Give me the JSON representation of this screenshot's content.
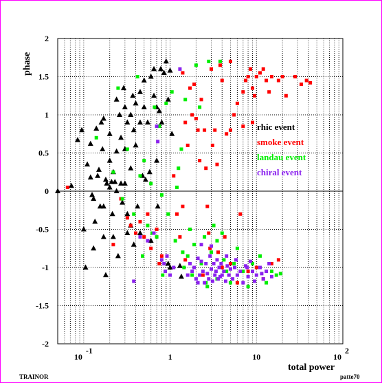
{
  "chart_data": {
    "type": "scatter",
    "xlabel": "total power",
    "ylabel": "phase",
    "xscale": "log",
    "xlim": [
      0.05,
      100
    ],
    "ylim": [
      -2,
      2
    ],
    "grid": true,
    "legend_placement": "right",
    "x_ticks": [
      {
        "value": 0.1,
        "base": "10",
        "exp": "-1"
      },
      {
        "value": 1,
        "label": "1"
      },
      {
        "value": 10,
        "label": "10"
      },
      {
        "value": 100,
        "base": "10",
        "exp": "2"
      }
    ],
    "y_ticks": [
      {
        "value": 2,
        "label": "2"
      },
      {
        "value": 1.5,
        "label": "1.5"
      },
      {
        "value": 1,
        "label": "1"
      },
      {
        "value": 0.5,
        "label": "0.5"
      },
      {
        "value": 0,
        "label": "0"
      },
      {
        "value": -0.5,
        "label": "-0.5"
      },
      {
        "value": -1,
        "label": "-1"
      },
      {
        "value": -1.5,
        "label": "-1.5"
      },
      {
        "value": -2,
        "label": "-2"
      }
    ],
    "footer_left": "TRAINOR",
    "footer_right": "patte70",
    "series": [
      {
        "name": "rhic event",
        "color": "#000000",
        "marker": "triangle",
        "points": [
          [
            0.05,
            0.0
          ],
          [
            0.072,
            0.07
          ],
          [
            0.085,
            0.67
          ],
          [
            0.095,
            0.8
          ],
          [
            0.1,
            -0.5
          ],
          [
            0.105,
            -1.0
          ],
          [
            0.11,
            0.35
          ],
          [
            0.12,
            0.62
          ],
          [
            0.12,
            0.18
          ],
          [
            0.125,
            -0.05
          ],
          [
            0.13,
            -0.1
          ],
          [
            0.13,
            -0.75
          ],
          [
            0.135,
            -0.4
          ],
          [
            0.14,
            0.82
          ],
          [
            0.145,
            0.2
          ],
          [
            0.15,
            0.28
          ],
          [
            0.155,
            -0.2
          ],
          [
            0.16,
            0.9
          ],
          [
            0.165,
            0.55
          ],
          [
            0.17,
            0.95
          ],
          [
            0.17,
            -0.2
          ],
          [
            0.17,
            -0.6
          ],
          [
            0.18,
            0.15
          ],
          [
            0.18,
            -1.1
          ],
          [
            0.185,
            0.1
          ],
          [
            0.2,
            0.75
          ],
          [
            0.2,
            0.4
          ],
          [
            0.2,
            0.05
          ],
          [
            0.21,
            0.12
          ],
          [
            0.215,
            -0.3
          ],
          [
            0.22,
            -0.6
          ],
          [
            0.22,
            0.25
          ],
          [
            0.23,
            0.12
          ],
          [
            0.24,
            1.2
          ],
          [
            0.24,
            0.52
          ],
          [
            0.24,
            0.0
          ],
          [
            0.25,
            -0.85
          ],
          [
            0.26,
            1.0
          ],
          [
            0.27,
            0.7
          ],
          [
            0.27,
            0.1
          ],
          [
            0.28,
            -0.15
          ],
          [
            0.29,
            1.35
          ],
          [
            0.3,
            1.1
          ],
          [
            0.3,
            0.55
          ],
          [
            0.3,
            0.1
          ],
          [
            0.32,
            0.9
          ],
          [
            0.32,
            -0.3
          ],
          [
            0.32,
            -0.55
          ],
          [
            0.35,
            1.0
          ],
          [
            0.35,
            0.3
          ],
          [
            0.35,
            -0.45
          ],
          [
            0.37,
            1.25
          ],
          [
            0.38,
            0.8
          ],
          [
            0.38,
            -0.7
          ],
          [
            0.4,
            1.15
          ],
          [
            0.4,
            0.6
          ],
          [
            0.42,
            -0.2
          ],
          [
            0.45,
            1.3
          ],
          [
            0.45,
            0.9
          ],
          [
            0.45,
            -0.55
          ],
          [
            0.48,
            0.2
          ],
          [
            0.5,
            1.45
          ],
          [
            0.5,
            1.1
          ],
          [
            0.52,
            0.15
          ],
          [
            0.55,
            0.9
          ],
          [
            0.58,
            0.25
          ],
          [
            0.6,
            1.5
          ],
          [
            0.6,
            -0.65
          ],
          [
            0.65,
            1.6
          ],
          [
            0.65,
            1.25
          ],
          [
            0.7,
            1.1
          ],
          [
            0.7,
            0.4
          ],
          [
            0.72,
            -0.2
          ],
          [
            0.75,
            1.05
          ],
          [
            0.78,
            1.6
          ],
          [
            0.8,
            0.9
          ],
          [
            0.85,
            1.55
          ],
          [
            0.9,
            1.7
          ],
          [
            0.95,
            1.2
          ],
          [
            1.0,
            1.58
          ],
          [
            1.05,
            0.75
          ],
          [
            1.0,
            -1.0
          ],
          [
            1.3,
            -0.98
          ],
          [
            1.35,
            -1.12
          ],
          [
            0.95,
            -0.95
          ]
        ]
      },
      {
        "name": "smoke event",
        "color": "#ff0000",
        "marker": "square",
        "points": [
          [
            0.065,
            0.05
          ],
          [
            0.22,
            -0.7
          ],
          [
            0.27,
            -0.1
          ],
          [
            0.32,
            -0.35
          ],
          [
            0.35,
            -0.45
          ],
          [
            0.4,
            -0.55
          ],
          [
            0.45,
            -0.4
          ],
          [
            0.5,
            -0.6
          ],
          [
            0.55,
            -0.3
          ],
          [
            0.6,
            -0.75
          ],
          [
            0.7,
            -0.5
          ],
          [
            0.75,
            -0.95
          ],
          [
            0.8,
            -0.85
          ],
          [
            1.1,
            0.2
          ],
          [
            1.2,
            -0.3
          ],
          [
            1.3,
            -0.6
          ],
          [
            1.4,
            -0.2
          ],
          [
            1.4,
            1.55
          ],
          [
            1.5,
            0.9
          ],
          [
            1.5,
            -0.9
          ],
          [
            1.6,
            0.6
          ],
          [
            1.7,
            1.35
          ],
          [
            1.8,
            1.0
          ],
          [
            1.9,
            1.4
          ],
          [
            2.0,
            0.95
          ],
          [
            2.1,
            0.8
          ],
          [
            2.2,
            0.4
          ],
          [
            2.3,
            1.2
          ],
          [
            2.5,
            0.8
          ],
          [
            2.6,
            0.3
          ],
          [
            2.7,
            -0.2
          ],
          [
            2.8,
            -0.55
          ],
          [
            2.9,
            -0.75
          ],
          [
            3.0,
            1.6
          ],
          [
            3.1,
            0.6
          ],
          [
            3.3,
            0.8
          ],
          [
            3.5,
            0.35
          ],
          [
            3.8,
            1.65
          ],
          [
            4.0,
            1.45
          ],
          [
            4.3,
            -0.6
          ],
          [
            4.5,
            0.75
          ],
          [
            5.0,
            1.7
          ],
          [
            5.5,
            1.0
          ],
          [
            6.0,
            1.15
          ],
          [
            6.5,
            -0.3
          ],
          [
            7.0,
            1.3
          ],
          [
            7.5,
            1.45
          ],
          [
            8.0,
            1.5
          ],
          [
            8.5,
            1.6
          ],
          [
            9.0,
            1.35
          ],
          [
            9.5,
            1.25
          ],
          [
            10.0,
            1.5
          ],
          [
            11.0,
            1.55
          ],
          [
            12.0,
            1.6
          ],
          [
            13.0,
            1.45
          ],
          [
            14.0,
            1.3
          ],
          [
            15.0,
            1.5
          ],
          [
            18.0,
            1.45
          ],
          [
            20.0,
            1.5
          ],
          [
            22.0,
            1.25
          ],
          [
            28.0,
            1.5
          ],
          [
            33.0,
            1.4
          ],
          [
            38.0,
            1.45
          ],
          [
            42.0,
            1.42
          ],
          [
            9.0,
            0.9
          ],
          [
            7.0,
            0.85
          ],
          [
            5.0,
            0.8
          ],
          [
            4.0,
            -1.0
          ],
          [
            5.0,
            -0.95
          ],
          [
            6.0,
            -1.2
          ],
          [
            8.0,
            -1.05
          ],
          [
            10.0,
            -1.0
          ],
          [
            12.0,
            -1.15
          ],
          [
            15.0,
            -0.95
          ],
          [
            18.0,
            -0.9
          ],
          [
            3.6,
            -0.8
          ],
          [
            2.4,
            -1.1
          ]
        ]
      },
      {
        "name": "landau event",
        "color": "#00ee00",
        "marker": "square",
        "points": [
          [
            0.14,
            0.7
          ],
          [
            0.22,
            0.25
          ],
          [
            0.25,
            1.35
          ],
          [
            0.28,
            -0.1
          ],
          [
            0.32,
            0.55
          ],
          [
            0.38,
            -0.3
          ],
          [
            0.42,
            1.5
          ],
          [
            0.45,
            0.2
          ],
          [
            0.48,
            -0.85
          ],
          [
            0.5,
            0.4
          ],
          [
            0.55,
            -0.45
          ],
          [
            0.6,
            0.1
          ],
          [
            0.62,
            -0.55
          ],
          [
            0.66,
            1.1
          ],
          [
            0.7,
            -0.6
          ],
          [
            0.75,
            0.85
          ],
          [
            0.8,
            -0.05
          ],
          [
            0.82,
            -1.1
          ],
          [
            0.9,
            1.15
          ],
          [
            0.95,
            -0.3
          ],
          [
            1.05,
            1.3
          ],
          [
            1.15,
            -0.65
          ],
          [
            1.2,
            0.05
          ],
          [
            1.25,
            0.3
          ],
          [
            1.35,
            0.55
          ],
          [
            1.4,
            -0.8
          ],
          [
            1.45,
            -1.0
          ],
          [
            1.5,
            1.2
          ],
          [
            1.6,
            -0.85
          ],
          [
            1.7,
            -0.5
          ],
          [
            1.8,
            -1.1
          ],
          [
            1.9,
            -0.7
          ],
          [
            2.0,
            1.65
          ],
          [
            2.2,
            1.1
          ],
          [
            2.3,
            -0.95
          ],
          [
            2.5,
            -0.6
          ],
          [
            2.6,
            -1.2
          ],
          [
            2.8,
            1.7
          ],
          [
            3.0,
            -0.8
          ],
          [
            3.2,
            -0.45
          ],
          [
            3.5,
            -1.15
          ],
          [
            3.8,
            1.7
          ],
          [
            4.0,
            -0.55
          ],
          [
            4.2,
            -0.9
          ],
          [
            4.5,
            -1.05
          ],
          [
            5.0,
            -1.2
          ],
          [
            5.5,
            -0.95
          ],
          [
            6.0,
            -0.75
          ],
          [
            7.0,
            -1.05
          ],
          [
            8.0,
            -1.25
          ],
          [
            9.0,
            -0.95
          ],
          [
            11.0,
            -0.85
          ],
          [
            13.0,
            -1.2
          ],
          [
            15.0,
            -1.05
          ],
          [
            17.0,
            -1.1
          ],
          [
            19.0,
            -1.08
          ],
          [
            3.5,
            -0.65
          ],
          [
            2.7,
            -1.25
          ]
        ]
      },
      {
        "name": "chiral event",
        "color": "#8b22ee",
        "marker": "square",
        "points": [
          [
            0.38,
            -1.18
          ],
          [
            0.45,
            -0.6
          ],
          [
            0.55,
            -0.65
          ],
          [
            0.65,
            -0.55
          ],
          [
            0.7,
            0.85
          ],
          [
            0.72,
            0.65
          ],
          [
            0.8,
            -0.9
          ],
          [
            0.85,
            -0.95
          ],
          [
            0.88,
            -1.05
          ],
          [
            0.92,
            -0.85
          ],
          [
            1.0,
            -1.1
          ],
          [
            1.1,
            -1.0
          ],
          [
            1.3,
            1.6
          ],
          [
            1.7,
            -0.95
          ],
          [
            1.8,
            -1.05
          ],
          [
            1.9,
            -1.0
          ],
          [
            2.0,
            -1.15
          ],
          [
            2.1,
            -0.88
          ],
          [
            2.2,
            -1.1
          ],
          [
            2.3,
            -0.92
          ],
          [
            2.4,
            -1.05
          ],
          [
            2.5,
            -1.2
          ],
          [
            2.6,
            -0.95
          ],
          [
            2.7,
            -1.08
          ],
          [
            2.8,
            -1.15
          ],
          [
            2.9,
            -0.85
          ],
          [
            3.0,
            -1.02
          ],
          [
            3.1,
            -1.18
          ],
          [
            3.2,
            -0.95
          ],
          [
            3.3,
            -1.1
          ],
          [
            3.4,
            -1.05
          ],
          [
            3.5,
            -0.9
          ],
          [
            3.6,
            -1.15
          ],
          [
            3.7,
            -1.0
          ],
          [
            3.8,
            -1.12
          ],
          [
            3.9,
            -0.95
          ],
          [
            4.0,
            -1.1
          ],
          [
            4.2,
            -1.05
          ],
          [
            4.4,
            -1.18
          ],
          [
            4.6,
            -0.98
          ],
          [
            4.8,
            -1.1
          ],
          [
            5.0,
            -1.02
          ],
          [
            5.3,
            -1.15
          ],
          [
            5.6,
            -1.0
          ],
          [
            6.0,
            -1.1
          ],
          [
            6.5,
            -1.05
          ],
          [
            7.0,
            -1.2
          ],
          [
            7.5,
            -0.98
          ],
          [
            8.0,
            -1.12
          ],
          [
            8.5,
            -0.92
          ],
          [
            9.0,
            -1.05
          ],
          [
            10.0,
            -1.1
          ],
          [
            11.0,
            -1.0
          ],
          [
            12.0,
            -1.15
          ],
          [
            13.0,
            -1.05
          ],
          [
            14.0,
            -0.95
          ],
          [
            15.0,
            -1.12
          ],
          [
            2.3,
            -0.7
          ],
          [
            3.0,
            -0.72
          ],
          [
            4.5,
            -0.85
          ],
          [
            1.6,
            -1.1
          ],
          [
            2.1,
            -1.2
          ],
          [
            5.8,
            -0.9
          ],
          [
            7.8,
            -1.0
          ],
          [
            9.5,
            -1.18
          ],
          [
            11.5,
            -1.08
          ]
        ]
      }
    ]
  }
}
